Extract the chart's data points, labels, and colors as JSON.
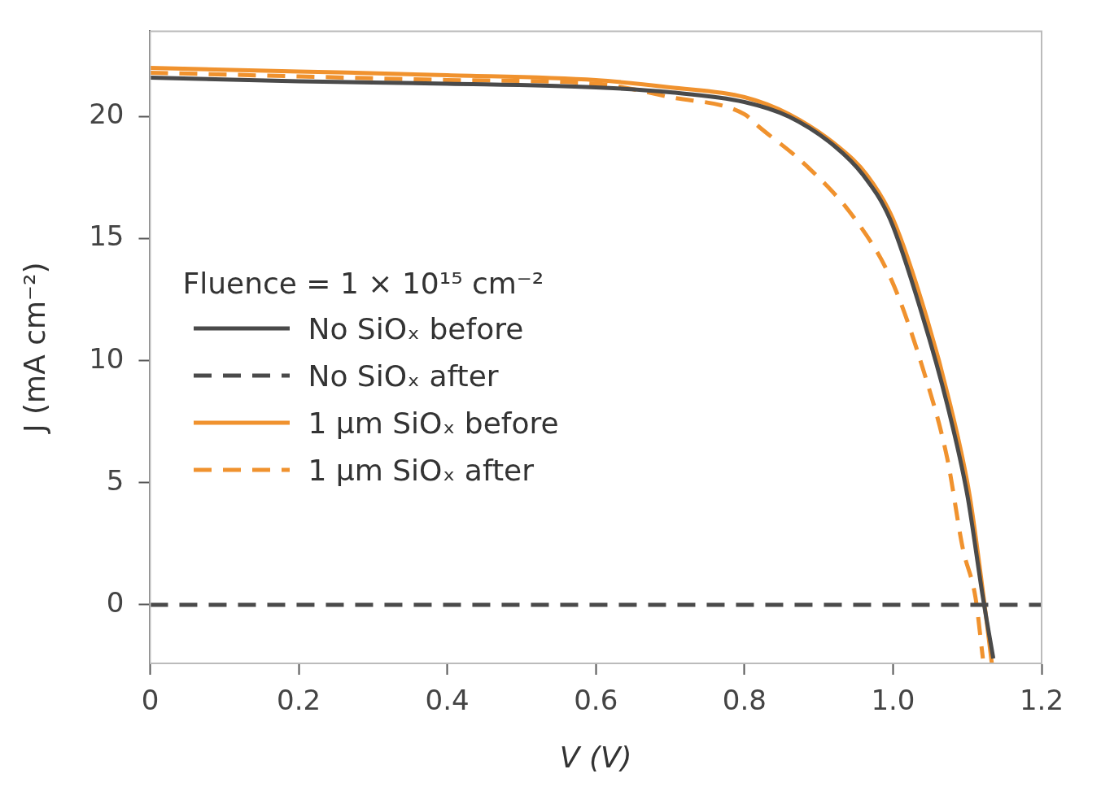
{
  "chart_data": {
    "type": "line",
    "xlabel": "V (V)",
    "ylabel": "J (mA cm⁻²)",
    "legend_title": "Fluence = 1 × 10¹⁵ cm⁻²",
    "legend": "left",
    "grid": false,
    "marker": "none",
    "xlim": [
      0,
      1.2
    ],
    "xticks": [
      0,
      0.2,
      0.4,
      0.6,
      0.8,
      {
        "value": 1,
        "label": "1.0"
      },
      1.2
    ],
    "ylim": [
      -2.4,
      23.5
    ],
    "yticks": [
      0,
      5,
      10,
      15,
      20
    ],
    "series": [
      {
        "name": "No SiOₓ before",
        "color": "#4a4a4a",
        "line_style": "solid",
        "x": [
          0,
          0.2,
          0.4,
          0.6,
          0.7,
          0.8,
          0.86,
          0.921,
          0.96,
          0.996,
          1.04,
          1.073,
          1.1,
          1.121,
          1.135
        ],
        "values": [
          21.6,
          21.45,
          21.35,
          21.2,
          21.0,
          20.6,
          20.0,
          18.8,
          17.6,
          15.8,
          11.8,
          8.2,
          4.5,
          0.3,
          -2.2
        ]
      },
      {
        "name": "No SiOₓ after",
        "color": "#4a4a4a",
        "line_style": "dashed",
        "x": [
          0,
          1.2
        ],
        "values": [
          0,
          0
        ]
      },
      {
        "name": "1 μm SiOₓ before",
        "color": "#f0922e",
        "line_style": "solid",
        "x": [
          0,
          0.2,
          0.4,
          0.6,
          0.7,
          0.8,
          0.86,
          0.925,
          0.965,
          1.0,
          1.045,
          1.077,
          1.103,
          1.122,
          1.133
        ],
        "values": [
          22.0,
          21.85,
          21.7,
          21.5,
          21.2,
          20.8,
          20.1,
          18.8,
          17.6,
          15.8,
          11.8,
          8.2,
          4.5,
          0.3,
          -2.4
        ]
      },
      {
        "name": "1 μm SiOₓ after",
        "color": "#f0922e",
        "line_style": "dashed",
        "x": [
          0,
          0.2,
          0.4,
          0.6,
          0.7,
          0.8,
          0.819,
          0.883,
          0.949,
          0.998,
          1.041,
          1.073,
          1.094,
          1.111,
          1.121
        ],
        "values": [
          21.8,
          21.65,
          21.5,
          21.35,
          20.8,
          20.1,
          19.6,
          18.0,
          15.8,
          13.3,
          9.6,
          6.0,
          2.3,
          0.3,
          -2.2
        ]
      }
    ]
  }
}
